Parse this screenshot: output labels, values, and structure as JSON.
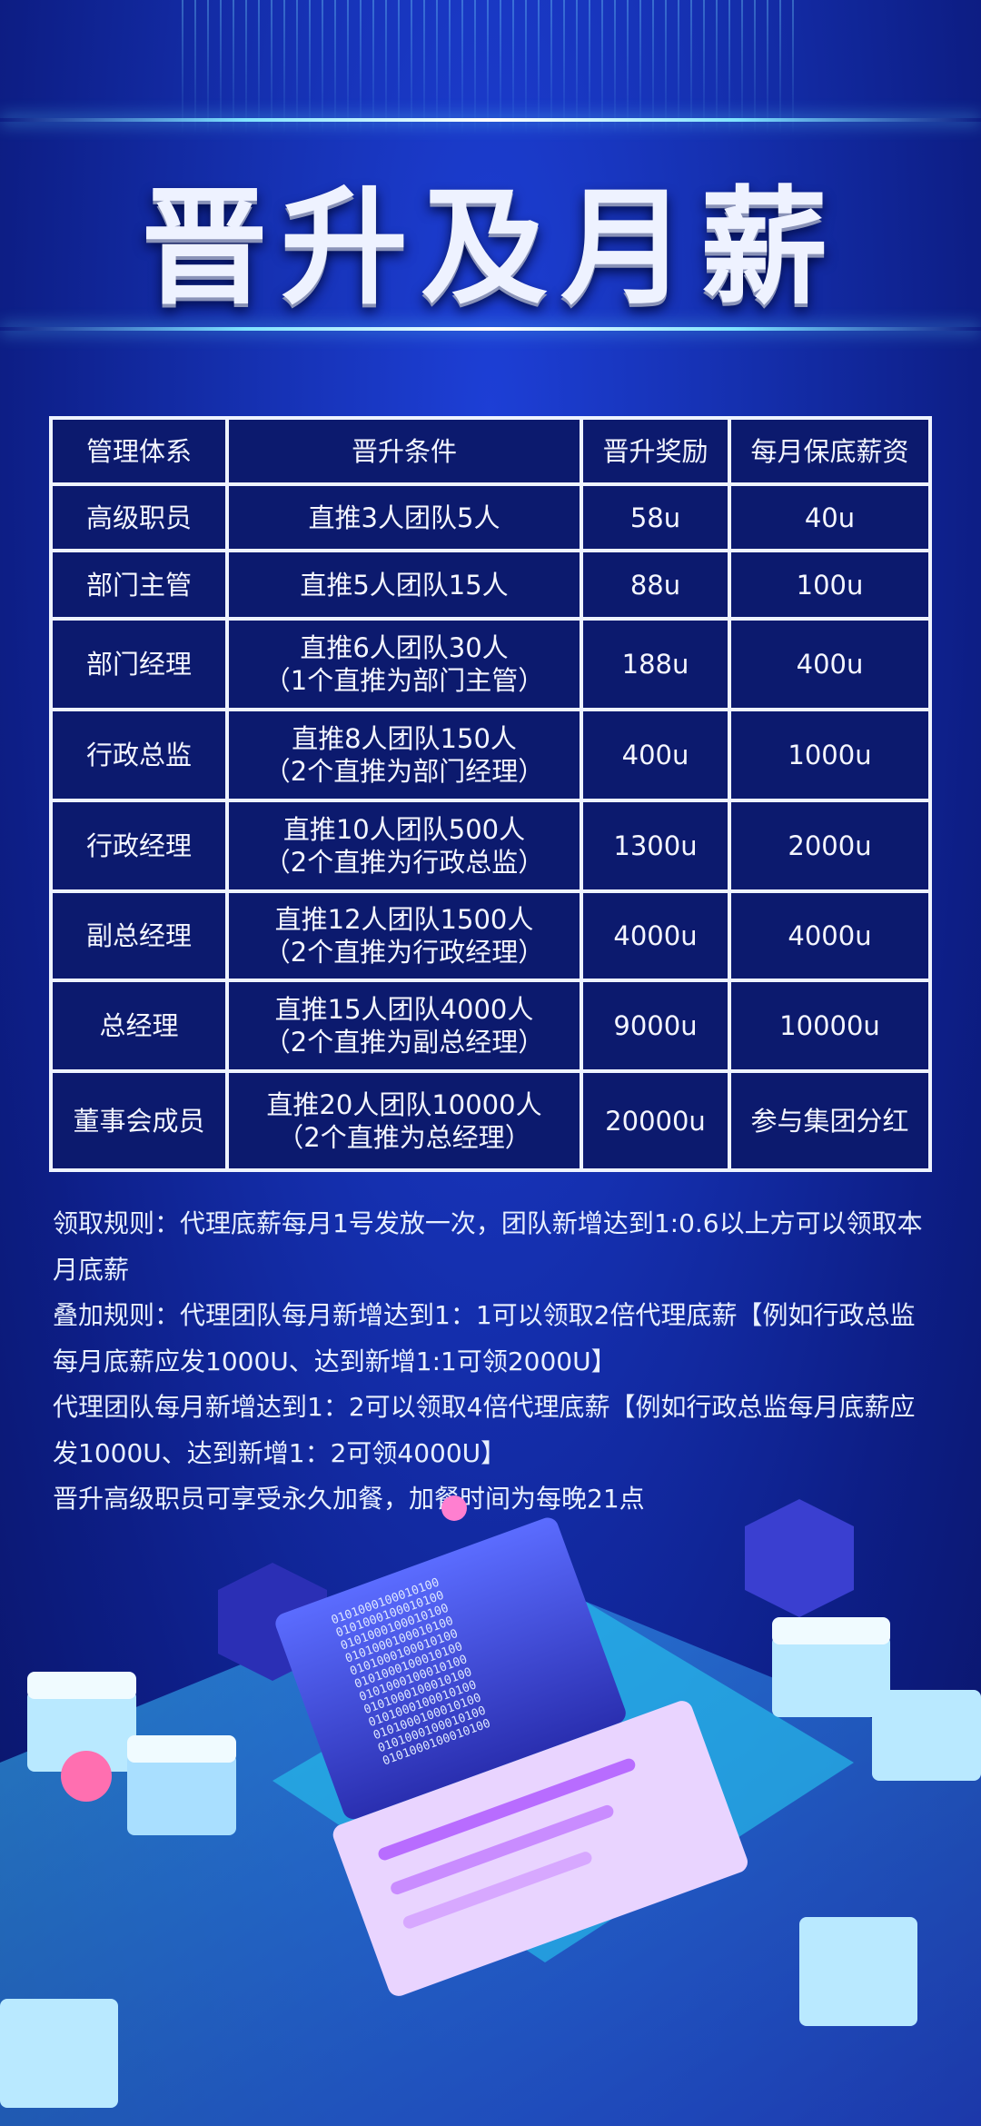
{
  "title": "晋升及月薪",
  "table": {
    "headers": [
      "管理体系",
      "晋升条件",
      "晋升奖励",
      "每月保底薪资"
    ],
    "rows": [
      {
        "level": "高级职员",
        "cond1": "直推3人团队5人",
        "cond2": "",
        "reward": "58u",
        "salary": "40u"
      },
      {
        "level": "部门主管",
        "cond1": "直推5人团队15人",
        "cond2": "",
        "reward": "88u",
        "salary": "100u"
      },
      {
        "level": "部门经理",
        "cond1": "直推6人团队30人",
        "cond2": "（1个直推为部门主管）",
        "reward": "188u",
        "salary": "400u"
      },
      {
        "level": "行政总监",
        "cond1": "直推8人团队150人",
        "cond2": "（2个直推为部门经理）",
        "reward": "400u",
        "salary": "1000u"
      },
      {
        "level": "行政经理",
        "cond1": "直推10人团队500人",
        "cond2": "（2个直推为行政总监）",
        "reward": "1300u",
        "salary": "2000u"
      },
      {
        "level": "副总经理",
        "cond1": "直推12人团队1500人",
        "cond2": "（2个直推为行政经理）",
        "reward": "4000u",
        "salary": "4000u"
      },
      {
        "level": "总经理",
        "cond1": "直推15人团队4000人",
        "cond2": "（2个直推为副总经理）",
        "reward": "9000u",
        "salary": "10000u"
      },
      {
        "level": "董事会成员",
        "cond1": "直推20人团队10000人",
        "cond2": "（2个直推为总经理）",
        "reward": "20000u",
        "salary": "参与集团分红"
      }
    ]
  },
  "rules": [
    "领取规则：代理底薪每月1号发放一次，团队新增达到1:0.6以上方可以领取本月底薪",
    "叠加规则：代理团队每月新增达到1：1可以领取2倍代理底薪【例如行政总监每月底薪应发1000U、达到新增1:1可领2000U】",
    "代理团队每月新增达到1：2可以领取4倍代理底薪【例如行政总监每月底薪应发1000U、达到新增1：2可领4000U】",
    "晋升高级职员可享受永久加餐，加餐时间为每晚21点"
  ],
  "illustration": {
    "binary": "0101000100010100"
  }
}
